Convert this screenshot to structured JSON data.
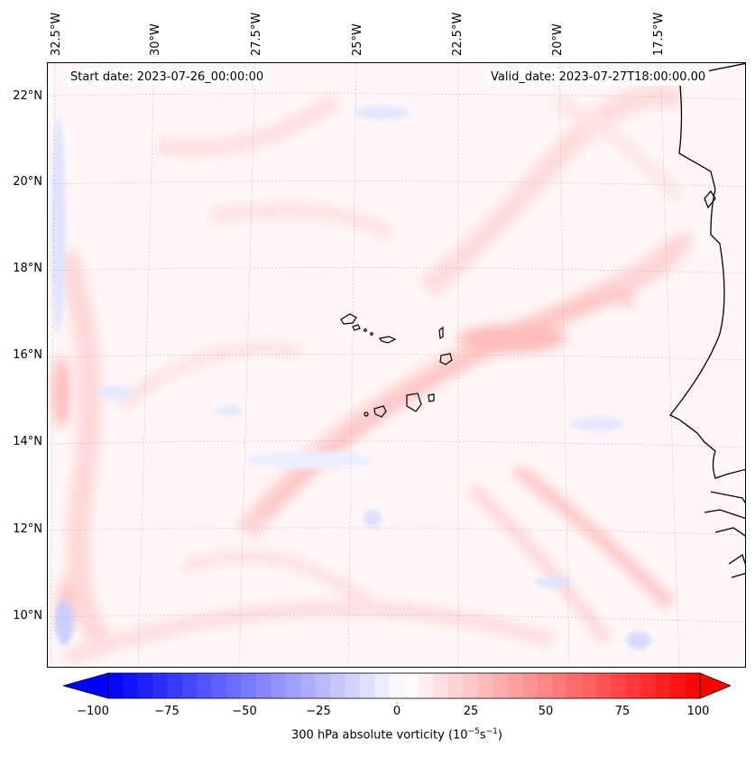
{
  "header": {
    "start_date": "Start date: 2023-07-26_00:00:00",
    "valid_date": "Valid_date: 2023-07-27T18:00:00.00"
  },
  "axes": {
    "longitude_labels": [
      "32.5°W",
      "30°W",
      "27.5°W",
      "25°W",
      "22.5°W",
      "20°W",
      "17.5°W"
    ],
    "latitude_labels": [
      "22°N",
      "20°N",
      "18°N",
      "16°N",
      "14°N",
      "12°N",
      "10°N"
    ]
  },
  "colorbar": {
    "label_prefix": "300 hPa absolute vorticity (10",
    "label_exp1": "−5",
    "label_mid": "s",
    "label_exp2": "−1",
    "label_suffix": ")",
    "ticks": [
      "−100",
      "−75",
      "−50",
      "−25",
      "0",
      "25",
      "50",
      "75",
      "100"
    ],
    "range": [
      -100,
      100
    ],
    "extend": "both",
    "colormap": "bwr",
    "low_color": "#0000ff",
    "mid_color": "#ffffff",
    "high_color": "#ff0000"
  },
  "map": {
    "projection": "lambert-conformal",
    "gridlines": "dashed-light-gray",
    "features": [
      "cabo-verde-islands",
      "west-africa-coastline"
    ]
  }
}
